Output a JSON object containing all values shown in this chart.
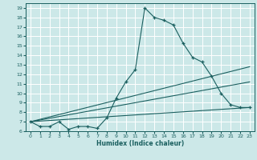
{
  "title": "",
  "xlabel": "Humidex (Indice chaleur)",
  "bg_color": "#cce8e8",
  "line_color": "#1a5f5f",
  "grid_color": "#ffffff",
  "xlim": [
    -0.5,
    23.5
  ],
  "ylim": [
    6,
    19.5
  ],
  "xticks": [
    0,
    1,
    2,
    3,
    4,
    5,
    6,
    7,
    8,
    9,
    10,
    11,
    12,
    13,
    14,
    15,
    16,
    17,
    18,
    19,
    20,
    21,
    22,
    23
  ],
  "yticks": [
    6,
    7,
    8,
    9,
    10,
    11,
    12,
    13,
    14,
    15,
    16,
    17,
    18,
    19
  ],
  "line1_x": [
    0,
    1,
    2,
    3,
    4,
    5,
    6,
    7,
    8,
    9,
    10,
    11,
    12,
    13,
    14,
    15,
    16,
    17,
    18,
    19,
    20,
    21,
    22,
    23
  ],
  "line1_y": [
    7.0,
    6.5,
    6.5,
    7.0,
    6.2,
    6.5,
    6.5,
    6.3,
    7.4,
    9.5,
    11.2,
    12.5,
    19.0,
    18.0,
    17.7,
    17.2,
    15.3,
    13.8,
    13.3,
    11.8,
    10.0,
    8.8,
    8.5,
    8.5
  ],
  "line2_x": [
    0,
    23
  ],
  "line2_y": [
    7.0,
    12.8
  ],
  "line3_x": [
    0,
    23
  ],
  "line3_y": [
    7.0,
    11.2
  ],
  "line4_x": [
    0,
    23
  ],
  "line4_y": [
    7.0,
    8.5
  ]
}
